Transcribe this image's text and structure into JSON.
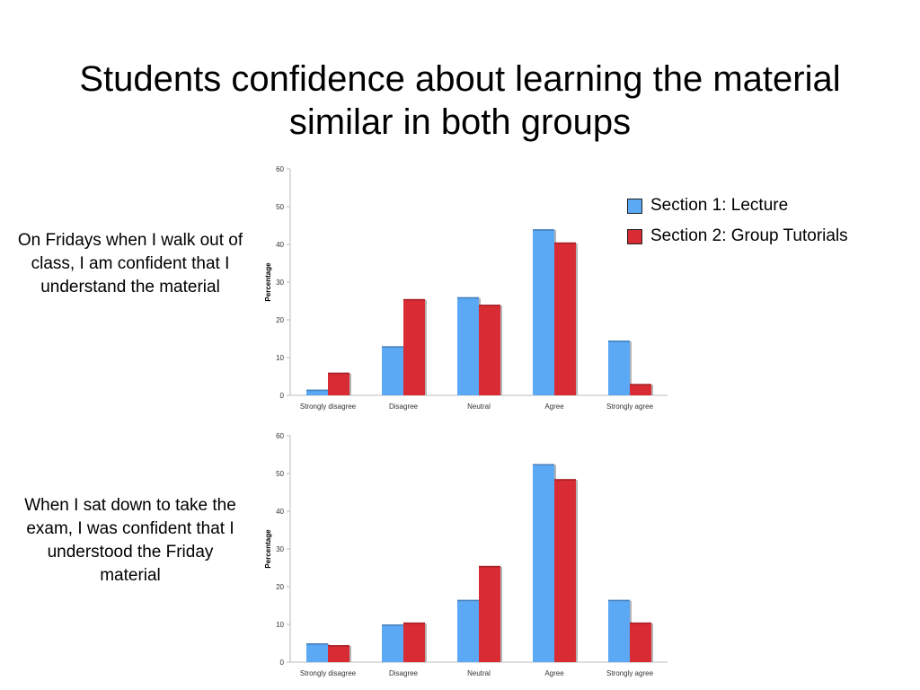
{
  "slide": {
    "title": "Students confidence about learning the material similar in both groups"
  },
  "legend": [
    {
      "label": "Section 1: Lecture",
      "color": "#5ba8f5"
    },
    {
      "label": "Section 2: Group Tutorials",
      "color": "#d92b33"
    }
  ],
  "questions": [
    "On Fridays when I walk out of class, I am confident that I understand the material",
    "When I sat down to take the exam, I was confident that I understood the Friday material"
  ],
  "chart_data": [
    {
      "type": "bar",
      "categories": [
        "Strongly disagree",
        "Disagree",
        "Neutral",
        "Agree",
        "Strongly agree"
      ],
      "series": [
        {
          "name": "Section 1: Lecture",
          "values": [
            1.5,
            13,
            26,
            44,
            14.5
          ],
          "color": "#5ba8f5"
        },
        {
          "name": "Section 2: Group Tutorials",
          "values": [
            6,
            25.5,
            24,
            40.5,
            3
          ],
          "color": "#d92b33"
        }
      ],
      "ylabel": "Percentage",
      "yticks": [
        0,
        10,
        20,
        30,
        40,
        50,
        60
      ],
      "ylim": [
        0,
        60
      ]
    },
    {
      "type": "bar",
      "categories": [
        "Strongly disagree",
        "Disagree",
        "Neutral",
        "Agree",
        "Strongly agree"
      ],
      "series": [
        {
          "name": "Section 1: Lecture",
          "values": [
            5,
            10,
            16.5,
            52.5,
            16.5
          ],
          "color": "#5ba8f5"
        },
        {
          "name": "Section 2: Group Tutorials",
          "values": [
            4.5,
            10.5,
            25.5,
            48.5,
            10.5
          ],
          "color": "#d92b33"
        }
      ],
      "ylabel": "Percentage",
      "yticks": [
        0,
        10,
        20,
        30,
        40,
        50,
        60
      ],
      "ylim": [
        0,
        60
      ]
    }
  ]
}
